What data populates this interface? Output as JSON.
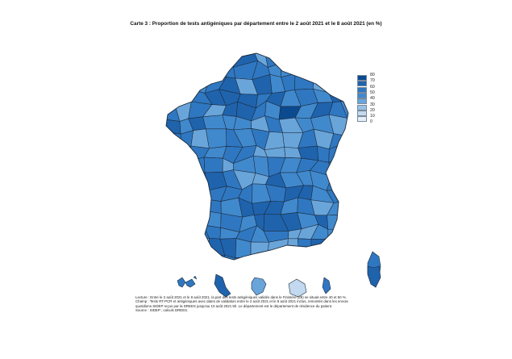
{
  "title": "Carte 3 : Proportion de tests antigéniques par département entre le 2 août 2021 et le 8 août 2021 (en %)",
  "colors": {
    "c80": "#0b4a8f",
    "c70": "#1f63ad",
    "c60": "#2f77c1",
    "c50": "#4189cd",
    "c40": "#6aa5da",
    "c30": "#97c1e6",
    "c20": "#c2d9ef",
    "c10": "#e6eff9",
    "border": "#1b2a3a",
    "background": "#ffffff"
  },
  "legend": {
    "labels": [
      "80",
      "70",
      "60",
      "50",
      "40",
      "30",
      "20",
      "10",
      "0"
    ],
    "colors": [
      "#0b4a8f",
      "#1f63ad",
      "#2f77c1",
      "#4189cd",
      "#6aa5da",
      "#97c1e6",
      "#c2d9ef",
      "#e6eff9"
    ]
  },
  "notes": {
    "lecture": "Lecture : Entre le 2 août 2021 et le 8 août 2021, la part des tests antigéniques validés dans le Finistère (29) se situait entre 40 et 50 %.",
    "champ": "Champ : Tests RT-PCR et antigéniques avec dates de validation entre le 2 août 2021 et le 8 août 2021 inclus, remontés dans les envois",
    "champ2": "quotidiens SIDEP reçus par la DREES jusqu'au 10 août 2021 5h. Le département est le département de résidence du patient.",
    "source": "Source : SIDEP ; calculs DREES."
  }
}
